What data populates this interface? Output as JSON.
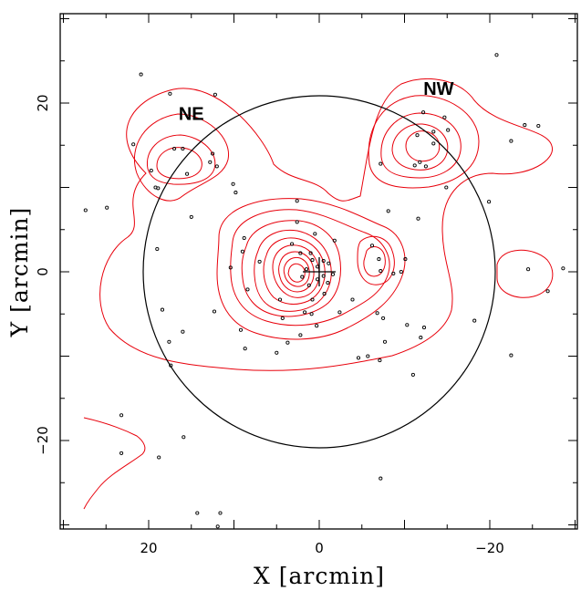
{
  "chart_data": {
    "type": "scatter",
    "xlabel": "X [arcmin]",
    "ylabel": "Y [arcmin]",
    "xlim": [
      30,
      -30
    ],
    "ylim": [
      -30,
      30
    ],
    "x_ticks": [
      20,
      0,
      -20
    ],
    "y_ticks": [
      20,
      0,
      -20
    ],
    "circle": {
      "cx": 0,
      "cy": 0,
      "r": 21
    },
    "region_labels": [
      {
        "text": "NE",
        "x": 15,
        "y": 18
      },
      {
        "text": "NW",
        "x": -14,
        "y": 21
      }
    ],
    "center_cross": {
      "x": 0,
      "y": 0
    },
    "colors": {
      "contours": "#e8000b",
      "points": "#000000",
      "circle": "#000000"
    },
    "points": [
      [
        20.9,
        23.4
      ],
      [
        17.5,
        21.1
      ],
      [
        12.2,
        21.0
      ],
      [
        21.8,
        15.1
      ],
      [
        19.7,
        12.0
      ],
      [
        17.0,
        14.6
      ],
      [
        16.0,
        14.6
      ],
      [
        15.5,
        11.6
      ],
      [
        12.5,
        14.0
      ],
      [
        12.8,
        13.0
      ],
      [
        12.0,
        12.5
      ],
      [
        19.2,
        10.0
      ],
      [
        18.9,
        9.9
      ],
      [
        10.1,
        10.4
      ],
      [
        9.8,
        9.4
      ],
      [
        -12.2,
        18.9
      ],
      [
        -13.4,
        16.6
      ],
      [
        -11.5,
        16.2
      ],
      [
        -14.7,
        18.3
      ],
      [
        -15.1,
        16.8
      ],
      [
        -13.4,
        15.2
      ],
      [
        -11.2,
        12.6
      ],
      [
        -11.8,
        13.0
      ],
      [
        -12.5,
        12.5
      ],
      [
        -7.2,
        12.8
      ],
      [
        -14.9,
        10.0
      ],
      [
        -20.8,
        25.7
      ],
      [
        -22.5,
        15.5
      ],
      [
        -24.1,
        17.4
      ],
      [
        -25.7,
        17.3
      ],
      [
        -19.9,
        8.3
      ],
      [
        -11.6,
        6.3
      ],
      [
        -8.1,
        7.2
      ],
      [
        27.4,
        7.3
      ],
      [
        24.9,
        7.6
      ],
      [
        19.0,
        2.7
      ],
      [
        15.0,
        6.5
      ],
      [
        8.8,
        4.0
      ],
      [
        9.0,
        2.4
      ],
      [
        7.0,
        1.2
      ],
      [
        10.4,
        0.5
      ],
      [
        2.6,
        8.4
      ],
      [
        0.5,
        4.5
      ],
      [
        -1.8,
        3.7
      ],
      [
        -6.2,
        3.1
      ],
      [
        -7.0,
        1.5
      ],
      [
        -7.2,
        0.1
      ],
      [
        -8.7,
        -0.2
      ],
      [
        -9.6,
        0.0
      ],
      [
        -10.1,
        1.5
      ],
      [
        -6.8,
        -4.9
      ],
      [
        -7.5,
        -5.5
      ],
      [
        -10.3,
        -6.3
      ],
      [
        -12.3,
        -6.6
      ],
      [
        -11.9,
        -7.8
      ],
      [
        -7.7,
        -8.3
      ],
      [
        -11.0,
        -12.2
      ],
      [
        -7.1,
        -10.5
      ],
      [
        -5.7,
        -10.0
      ],
      [
        -4.6,
        -10.2
      ],
      [
        -3.9,
        -3.3
      ],
      [
        -2.4,
        -4.8
      ],
      [
        0.3,
        -6.4
      ],
      [
        0.9,
        -5.0
      ],
      [
        2.2,
        -7.5
      ],
      [
        3.7,
        -8.4
      ],
      [
        5.0,
        -9.6
      ],
      [
        4.3,
        -5.5
      ],
      [
        1.7,
        -4.8
      ],
      [
        0.8,
        -3.3
      ],
      [
        -0.6,
        -2.6
      ],
      [
        -1.0,
        -1.3
      ],
      [
        -1.6,
        -0.3
      ],
      [
        -1.1,
        1.0
      ],
      [
        -0.5,
        1.3
      ],
      [
        0.2,
        0.6
      ],
      [
        0.8,
        1.4
      ],
      [
        1.5,
        0.3
      ],
      [
        0.2,
        -0.9
      ],
      [
        -0.5,
        -0.5
      ],
      [
        2.0,
        -0.6
      ],
      [
        2.2,
        2.2
      ],
      [
        3.2,
        3.3
      ],
      [
        2.6,
        5.9
      ],
      [
        1.0,
        2.2
      ],
      [
        1.2,
        -1.6
      ],
      [
        4.6,
        -3.3
      ],
      [
        8.4,
        -2.1
      ],
      [
        9.2,
        -6.9
      ],
      [
        8.7,
        -9.1
      ],
      [
        12.3,
        -4.7
      ],
      [
        18.4,
        -4.5
      ],
      [
        17.6,
        -8.3
      ],
      [
        17.4,
        -11.1
      ],
      [
        -18.2,
        -5.8
      ],
      [
        -22.5,
        -9.9
      ],
      [
        -24.5,
        0.3
      ],
      [
        -26.8,
        -2.3
      ],
      [
        -28.6,
        0.4
      ],
      [
        23.2,
        -17.0
      ],
      [
        23.2,
        -21.5
      ],
      [
        18.8,
        -22.0
      ],
      [
        15.9,
        -19.6
      ],
      [
        -7.2,
        -24.5
      ],
      [
        14.3,
        -28.6
      ],
      [
        11.6,
        -28.6
      ],
      [
        11.9,
        -30.2
      ],
      [
        16.0,
        -7.1
      ]
    ]
  }
}
